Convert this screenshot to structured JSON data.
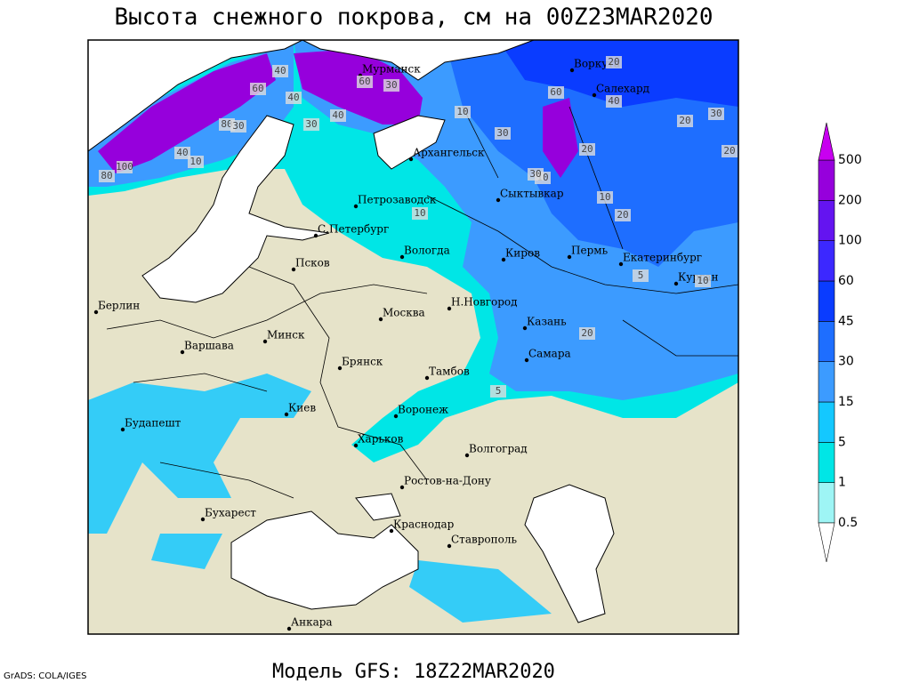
{
  "header": {
    "title": "Высота снежного покрова, см на 00Z23MAR2020"
  },
  "footer": {
    "model": "Модель GFS: 18Z22MAR2020",
    "credit": "GrADS: COLA/IGES"
  },
  "cities": [
    "Мурманск",
    "Воркута",
    "Салехард",
    "Архангельск",
    "Петрозаводск",
    "Сыктывкар",
    "С.Петербург",
    "Вологда",
    "Киров",
    "Пермь",
    "Екатеринбург",
    "Курган",
    "Псков",
    "Берлин",
    "Н.Новгород",
    "Москва",
    "Казань",
    "Минск",
    "Варшава",
    "Самара",
    "Брянск",
    "Тамбов",
    "Киев",
    "Воронеж",
    "Будапешт",
    "Харьков",
    "Волгоград",
    "Ростов-на-Дону",
    "Бухарест",
    "Краснодар",
    "Ставрополь",
    "Анкара"
  ],
  "contour_labels": [
    40,
    60,
    40,
    60,
    30,
    40,
    80,
    30,
    100,
    80,
    10,
    40,
    30,
    10,
    30,
    60,
    20,
    40,
    10,
    30,
    20,
    10,
    20,
    10,
    30,
    20,
    20,
    10,
    5,
    20,
    5
  ],
  "legend": {
    "levels": [
      0.5,
      1,
      5,
      15,
      30,
      45,
      60,
      100,
      200,
      500
    ],
    "colors": [
      "#ffffff",
      "#9ef5f5",
      "#00e6e6",
      "#14c8ff",
      "#3c9bff",
      "#1e6eff",
      "#0a3cff",
      "#3c28ff",
      "#6414f0",
      "#9600dc",
      "#c800f0"
    ]
  }
}
